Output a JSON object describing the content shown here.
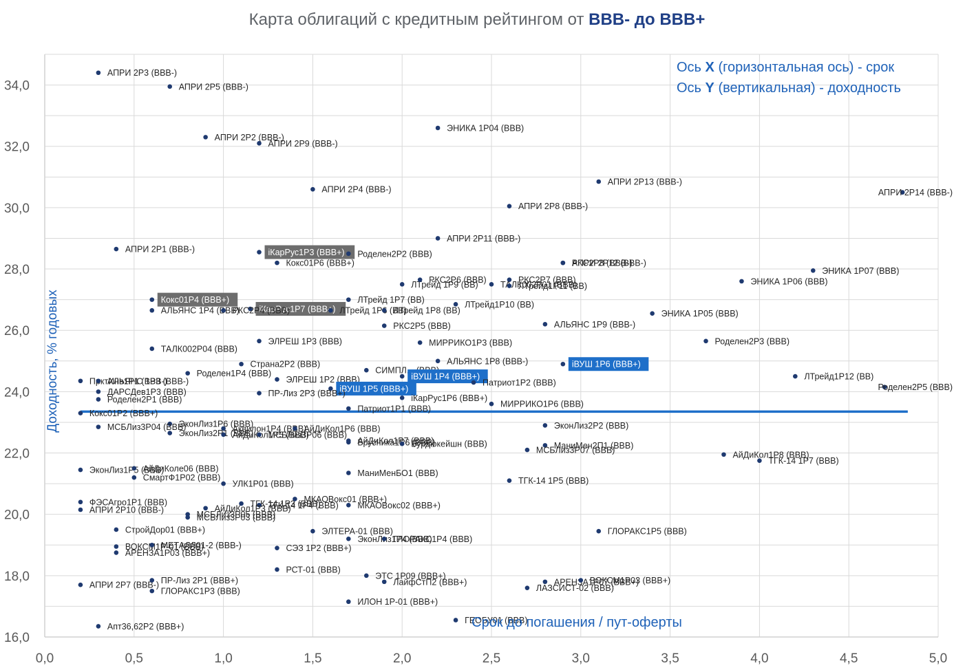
{
  "chart_data": {
    "type": "scatter",
    "title_prefix": "Карта облигаций с кредитным рейтингом от ",
    "title_emphasis": "BBB- до BBB+",
    "xlabel": "Срок до погашения / пут-оферты",
    "ylabel": "Доходность, % годовых",
    "xlim": [
      0,
      5
    ],
    "ylim": [
      16,
      35
    ],
    "x_ticks": [
      "0,0",
      "0,5",
      "1,0",
      "1,5",
      "2,0",
      "2,5",
      "3,0",
      "3,5",
      "4,0",
      "4,5",
      "5,0"
    ],
    "y_ticks": [
      "16,0",
      "18,0",
      "20,0",
      "22,0",
      "24,0",
      "26,0",
      "28,0",
      "30,0",
      "32,0",
      "34,0"
    ],
    "grid": true,
    "legend_notes": {
      "x_prefix": "Ось ",
      "x_letter": "X",
      "x_suffix": " (горизонтальная ось) - срок",
      "y_prefix": "Ось ",
      "y_letter": "Y",
      "y_suffix": " (вертикальная) - доходность"
    },
    "average_line_y": 23.35,
    "points": [
      {
        "label": "АПРИ 2Р3 (BBB-)",
        "x": 0.3,
        "y": 34.4
      },
      {
        "label": "АПРИ 2Р5 (BBB-)",
        "x": 0.7,
        "y": 33.95
      },
      {
        "label": "АПРИ 2Р2 (BBB-)",
        "x": 0.9,
        "y": 32.3
      },
      {
        "label": "АПРИ 2Р9 (BBB-)",
        "x": 1.2,
        "y": 32.1
      },
      {
        "label": "ЭНИКА 1Р04 (BBB)",
        "x": 2.2,
        "y": 32.6
      },
      {
        "label": "АПРИ 2Р4 (BBB-)",
        "x": 1.5,
        "y": 30.6
      },
      {
        "label": "АПРИ 2Р13 (BBB-)",
        "x": 3.1,
        "y": 30.85
      },
      {
        "label": "АПРИ 2Р14 (BBB-)",
        "x": 4.8,
        "y": 30.5
      },
      {
        "label": "АПРИ 2Р8 (BBB-)",
        "x": 2.6,
        "y": 30.05
      },
      {
        "label": "АПРИ 2Р1 (BBB-)",
        "x": 0.4,
        "y": 28.65
      },
      {
        "label": "АПРИ 2Р11 (BBB-)",
        "x": 2.2,
        "y": 29.0
      },
      {
        "label": "iКарРус1Р3 (BBB+)",
        "x": 1.2,
        "y": 28.55,
        "hl": "gray"
      },
      {
        "label": "Роделен2Р2 (BBB)",
        "x": 1.7,
        "y": 28.5
      },
      {
        "label": "Кокс01Р6 (BBB+)",
        "x": 1.3,
        "y": 28.2
      },
      {
        "label": "РКС2Р8 (BBB-)",
        "x": 2.9,
        "y": 28.2
      },
      {
        "label": "АПРИ 2Р12 (BBB-)",
        "x": 2.9,
        "y": 28.2
      },
      {
        "label": "ЭНИКА 1Р07 (BBB)",
        "x": 4.3,
        "y": 27.95
      },
      {
        "label": "ЭНИКА 1Р06 (BBB)",
        "x": 3.9,
        "y": 27.6
      },
      {
        "label": "ЛТрейд 1Р9 (BB)",
        "x": 2.0,
        "y": 27.5
      },
      {
        "label": "РКС2Р6 (BBB)",
        "x": 2.1,
        "y": 27.65
      },
      {
        "label": "РКС2Р7 (BBB)",
        "x": 2.6,
        "y": 27.65
      },
      {
        "label": "ТАЛК002Р01 (BBB)",
        "x": 2.5,
        "y": 27.5
      },
      {
        "label": "ЛТрейд1Р11 (BB)",
        "x": 2.6,
        "y": 27.45
      },
      {
        "label": "Кокс01Р4 (BBB+)",
        "x": 0.6,
        "y": 27.0,
        "hl": "gray"
      },
      {
        "label": "iКарРус1Р7 (BBB+)",
        "x": 1.15,
        "y": 26.7,
        "hl": "gray"
      },
      {
        "label": "АЛЬЯНС 1Р4 (BBB)",
        "x": 0.6,
        "y": 26.65
      },
      {
        "label": "РКС2Р4 (BBB)",
        "x": 1.0,
        "y": 26.65
      },
      {
        "label": "ЛТрейд 1Р7 (BB)",
        "x": 1.7,
        "y": 27.0
      },
      {
        "label": "ЛТрейд1Р10 (BB)",
        "x": 2.3,
        "y": 26.85
      },
      {
        "label": "ЛТрейд 1Р6 (BB)",
        "x": 1.6,
        "y": 26.65
      },
      {
        "label": "ЛТрейд 1Р8 (BB)",
        "x": 1.9,
        "y": 26.65
      },
      {
        "label": "ЭНИКА 1Р05 (BBB)",
        "x": 3.4,
        "y": 26.55
      },
      {
        "label": "РКС2Р5 (BBB)",
        "x": 1.9,
        "y": 26.15
      },
      {
        "label": "АЛЬЯНС 1Р9 (BBB-)",
        "x": 2.8,
        "y": 26.2
      },
      {
        "label": "ЭЛРЕШ 1Р3 (BBB)",
        "x": 1.2,
        "y": 25.65
      },
      {
        "label": "МИРРИКО1Р3 (BBB)",
        "x": 2.1,
        "y": 25.6
      },
      {
        "label": "Роделен2Р3 (BBB)",
        "x": 3.7,
        "y": 25.65
      },
      {
        "label": "ТАЛК002Р04 (BBB)",
        "x": 0.6,
        "y": 25.4
      },
      {
        "label": "Страна2Р2 (BBB)",
        "x": 1.1,
        "y": 24.9
      },
      {
        "label": "АЛЬЯНС 1Р8 (BBB-)",
        "x": 2.2,
        "y": 25.0
      },
      {
        "label": "iВУШ 1Р6 (BBB+)",
        "x": 2.9,
        "y": 24.9,
        "hl": "blue"
      },
      {
        "label": "Роделен1Р4 (BBB)",
        "x": 0.8,
        "y": 24.6
      },
      {
        "label": "СИМПЛ... (BBB)",
        "x": 1.8,
        "y": 24.7
      },
      {
        "label": "iВУШ 1Р4 (BBB+)",
        "x": 2.0,
        "y": 24.5,
        "hl": "blue"
      },
      {
        "label": "Патриот1Р2 (BBB)",
        "x": 2.4,
        "y": 24.3
      },
      {
        "label": "ЛТрейд1Р12 (BB)",
        "x": 4.2,
        "y": 24.5
      },
      {
        "label": "Роделен2Р5 (BBB)",
        "x": 4.7,
        "y": 24.15
      },
      {
        "label": "ПрктИнв1Р1 (BBB-)",
        "x": 0.2,
        "y": 24.35
      },
      {
        "label": "АЛЬЯНС 1Р3 (BBB-)",
        "x": 0.3,
        "y": 24.35
      },
      {
        "label": "ДАРСДев1Р3 (BBB)",
        "x": 0.3,
        "y": 24.0
      },
      {
        "label": "Роделен2Р1 (BBB)",
        "x": 0.3,
        "y": 23.75
      },
      {
        "label": "ЭЛРЕШ 1Р2 (BBB)",
        "x": 1.3,
        "y": 24.4
      },
      {
        "label": "iВУШ 1Р5 (BBB+)",
        "x": 1.6,
        "y": 24.1,
        "hl": "blue"
      },
      {
        "label": "ПР-Лиз 2Р3 (BBB+)",
        "x": 1.2,
        "y": 23.95
      },
      {
        "label": "iКарРус1Р6 (BBB+)",
        "x": 2.0,
        "y": 23.8
      },
      {
        "label": "Патриот1Р1 (BBB)",
        "x": 1.7,
        "y": 23.45
      },
      {
        "label": "МИРРИКО1Р6 (BBB)",
        "x": 2.5,
        "y": 23.6
      },
      {
        "label": "Кокс01Р2 (BBB+)",
        "x": 0.2,
        "y": 23.3
      },
      {
        "label": "ЭконЛиз1Р6 (BBB)",
        "x": 0.7,
        "y": 22.95
      },
      {
        "label": "МСБЛиз3Р04 (BBB)",
        "x": 0.3,
        "y": 22.85
      },
      {
        "label": "ЭконЛиз2Р2 (BBB)",
        "x": 2.8,
        "y": 22.9
      },
      {
        "label": "ЭконЛиз2Р1 (BBB)",
        "x": 0.7,
        "y": 22.65
      },
      {
        "label": "Аквилон1Р4 (BBB)",
        "x": 1.0,
        "y": 22.8
      },
      {
        "label": "АйДиКол1Р6 (BBB)",
        "x": 1.4,
        "y": 22.8
      },
      {
        "label": "АйДиКол1Р5 (BBB)",
        "x": 1.0,
        "y": 22.6
      },
      {
        "label": "МСБЛиз3Р06 (BBB)",
        "x": 1.2,
        "y": 22.6
      },
      {
        "label": "АйДиКол1Р7 (BBB)",
        "x": 1.7,
        "y": 22.4
      },
      {
        "label": "Брусника1Р6 (BBB)",
        "x": 1.7,
        "y": 22.35
      },
      {
        "label": "Бурдюкейшн (BBB)",
        "x": 2.0,
        "y": 22.3
      },
      {
        "label": "МаниМен2П1 (BBB)",
        "x": 2.8,
        "y": 22.25
      },
      {
        "label": "МСБЛиз3Р07 (BBB)",
        "x": 2.7,
        "y": 22.1
      },
      {
        "label": "АйДиКол1Р8 (BBB)",
        "x": 3.8,
        "y": 21.95
      },
      {
        "label": "ТГК-14 1Р7 (BBB)",
        "x": 4.0,
        "y": 21.75
      },
      {
        "label": "ЭконЛиз1Р5 (BBB)",
        "x": 0.2,
        "y": 21.45
      },
      {
        "label": "АйДиКоле06 (BBB)",
        "x": 0.5,
        "y": 21.5
      },
      {
        "label": "СмартФ1Р02 (BBB)",
        "x": 0.5,
        "y": 21.2
      },
      {
        "label": "УЛК1Р01 (BBB)",
        "x": 1.0,
        "y": 21.0
      },
      {
        "label": "МаниМенБО1 (BBB)",
        "x": 1.7,
        "y": 21.35
      },
      {
        "label": "ТГК-14 1Р5 (BBB)",
        "x": 2.6,
        "y": 21.1
      },
      {
        "label": "ФЭСАгро1Р1 (BBB)",
        "x": 0.2,
        "y": 20.4
      },
      {
        "label": "АПРИ 2Р10 (BBB-)",
        "x": 0.2,
        "y": 20.15
      },
      {
        "label": "ТГК-14 1Р3 (BBB)",
        "x": 1.1,
        "y": 20.35
      },
      {
        "label": "ТГК-14 1Р4 (BBB)",
        "x": 1.2,
        "y": 20.3
      },
      {
        "label": "МКАОВокс01 (BBB+)",
        "x": 1.4,
        "y": 20.5
      },
      {
        "label": "МКАОВокс02 (BBB+)",
        "x": 1.7,
        "y": 20.3
      },
      {
        "label": "АйДиКол1Р3 (BBB)",
        "x": 0.9,
        "y": 20.2
      },
      {
        "label": "МСБЛиз3Р05 (BBB)",
        "x": 0.8,
        "y": 20.0
      },
      {
        "label": "МСБЛиз3Р03 (BBB)",
        "x": 0.8,
        "y": 19.9
      },
      {
        "label": "СтройДор01 (BBB+)",
        "x": 0.4,
        "y": 19.5
      },
      {
        "label": "ЭЛТЕРА-01 (BBB)",
        "x": 1.5,
        "y": 19.45
      },
      {
        "label": "ЭконЛиз1Р4 (BBB)",
        "x": 1.7,
        "y": 19.2
      },
      {
        "label": "ГЛОРАКС1Р4 (BBB)",
        "x": 1.9,
        "y": 19.2
      },
      {
        "label": "ГЛОРАКС1Р5 (BBB)",
        "x": 3.1,
        "y": 19.45
      },
      {
        "label": "ВОКСМ1Р-01 (BBB)",
        "x": 0.4,
        "y": 18.95
      },
      {
        "label": "МЕТАЛЛ01-2 (BBB-)",
        "x": 0.6,
        "y": 19.0
      },
      {
        "label": "АРЕНЗА1Р03 (BBB+)",
        "x": 0.4,
        "y": 18.75
      },
      {
        "label": "СЭЗ 1Р2 (BBB+)",
        "x": 1.3,
        "y": 18.9
      },
      {
        "label": "РСТ-01 (BBB)",
        "x": 1.3,
        "y": 18.2
      },
      {
        "label": "ЭТС 1Р09 (BBB+)",
        "x": 1.8,
        "y": 18.0
      },
      {
        "label": "ЛайфСтП2 (BBB+)",
        "x": 1.9,
        "y": 17.8
      },
      {
        "label": "АРЕНЗА1Р07 (BBB+)",
        "x": 2.8,
        "y": 17.8
      },
      {
        "label": "ВОКСМ1Р03 (BBB+)",
        "x": 3.0,
        "y": 17.85
      },
      {
        "label": "ЛАЗСИСТ-02 (BBB)",
        "x": 2.7,
        "y": 17.6
      },
      {
        "label": "АПРИ 2Р7 (BBB-)",
        "x": 0.2,
        "y": 17.7
      },
      {
        "label": "ПР-Лиз 2Р1 (BBB+)",
        "x": 0.6,
        "y": 17.85
      },
      {
        "label": "ГЛОРАКС1Р3 (BBB)",
        "x": 0.6,
        "y": 17.5
      },
      {
        "label": "ИЛОН 1Р-01 (BBB+)",
        "x": 1.7,
        "y": 17.15
      },
      {
        "label": "ГЕОБУ01 (BBB)",
        "x": 2.3,
        "y": 16.55
      },
      {
        "label": "Апт36,62Р2 (BBB+)",
        "x": 0.3,
        "y": 16.35
      }
    ]
  }
}
